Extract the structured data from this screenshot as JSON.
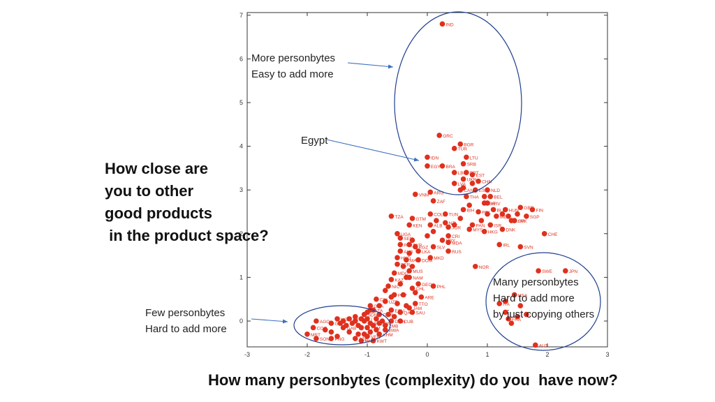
{
  "annotations": {
    "more_line1": "More personbytes",
    "more_line2": "Easy to add more",
    "egypt": "Egypt",
    "few_line1": "Few personbytes",
    "few_line2": "Hard to add more",
    "many_line1": "Many personbytes",
    "many_line2": "Hard to add more",
    "many_line3": "by just copying others"
  },
  "question": {
    "line1": "How close are",
    "line2": "you to other",
    "line3": "good products",
    "line4": " in the product space?"
  },
  "xaxis_title": "How many personbytes (complexity) do you  have now?",
  "colors": {
    "points": "#e0301e",
    "ellipses": "#1f3f8f",
    "arrows": "#3a6fc0"
  },
  "chart_data": {
    "type": "scatter",
    "xlim": [
      -3,
      3
    ],
    "ylim": [
      -0.6,
      7
    ],
    "xticks": [
      "-3",
      "-2",
      "-1",
      "0",
      "1",
      "2",
      "3"
    ],
    "yticks": [
      "0",
      "1",
      "2",
      "3",
      "4",
      "5",
      "6",
      "7"
    ],
    "labeled_points": [
      {
        "label": "IND",
        "x": 0.25,
        "y": 6.8
      },
      {
        "label": "GRC",
        "x": 0.2,
        "y": 4.25
      },
      {
        "label": "BGR",
        "x": 0.55,
        "y": 4.05
      },
      {
        "label": "TUR",
        "x": 0.45,
        "y": 3.95
      },
      {
        "label": "LTU",
        "x": 0.65,
        "y": 3.75
      },
      {
        "label": "IDN",
        "x": 0.0,
        "y": 3.75
      },
      {
        "label": "SRB",
        "x": 0.6,
        "y": 3.6
      },
      {
        "label": "EGY",
        "x": 0.0,
        "y": 3.55
      },
      {
        "label": "BRA",
        "x": 0.25,
        "y": 3.55
      },
      {
        "label": "LBN",
        "x": 0.45,
        "y": 3.4
      },
      {
        "label": "PRT",
        "x": 0.65,
        "y": 3.4
      },
      {
        "label": "EST",
        "x": 0.75,
        "y": 3.35
      },
      {
        "label": "UKR",
        "x": 0.6,
        "y": 3.25
      },
      {
        "label": "CHN",
        "x": 0.85,
        "y": 3.2
      },
      {
        "label": "LVA",
        "x": 0.45,
        "y": 3.15
      },
      {
        "label": "VNM",
        "x": -0.2,
        "y": 2.9
      },
      {
        "label": "ARG",
        "x": 0.05,
        "y": 2.95
      },
      {
        "label": "CAN",
        "x": 0.55,
        "y": 3.0
      },
      {
        "label": "ESP",
        "x": 0.8,
        "y": 3.0
      },
      {
        "label": "NLD",
        "x": 1.0,
        "y": 3.0
      },
      {
        "label": "BEL",
        "x": 1.05,
        "y": 2.85
      },
      {
        "label": "THA",
        "x": 0.65,
        "y": 2.85
      },
      {
        "label": "ZAF",
        "x": 0.1,
        "y": 2.75
      },
      {
        "label": "ISR",
        "x": 0.95,
        "y": 2.7
      },
      {
        "label": "HRV",
        "x": 1.0,
        "y": 2.7
      },
      {
        "label": "BIH",
        "x": 0.6,
        "y": 2.55
      },
      {
        "label": "POL",
        "x": 0.85,
        "y": 2.5
      },
      {
        "label": "BLR",
        "x": 1.1,
        "y": 2.55
      },
      {
        "label": "HUN",
        "x": 1.3,
        "y": 2.55
      },
      {
        "label": "GBR",
        "x": 1.55,
        "y": 2.6
      },
      {
        "label": "FIN",
        "x": 1.75,
        "y": 2.55
      },
      {
        "label": "SGP",
        "x": 1.65,
        "y": 2.4
      },
      {
        "label": "MEX",
        "x": 1.15,
        "y": 2.4
      },
      {
        "label": "SVK",
        "x": 1.45,
        "y": 2.3
      },
      {
        "label": "KOR",
        "x": 1.4,
        "y": 2.3
      },
      {
        "label": "TZA",
        "x": -0.6,
        "y": 2.4
      },
      {
        "label": "COL",
        "x": 0.05,
        "y": 2.45
      },
      {
        "label": "TUN",
        "x": 0.3,
        "y": 2.45
      },
      {
        "label": "GTM",
        "x": -0.25,
        "y": 2.35
      },
      {
        "label": "PAN",
        "x": 0.75,
        "y": 2.2
      },
      {
        "label": "ISR",
        "x": 1.05,
        "y": 2.2
      },
      {
        "label": "NZL",
        "x": 0.3,
        "y": 2.25
      },
      {
        "label": "KEN",
        "x": -0.3,
        "y": 2.2
      },
      {
        "label": "ALB",
        "x": 0.05,
        "y": 2.2
      },
      {
        "label": "JOR",
        "x": 0.35,
        "y": 2.15
      },
      {
        "label": "MYS",
        "x": 0.7,
        "y": 2.1
      },
      {
        "label": "HKG",
        "x": 0.95,
        "y": 2.05
      },
      {
        "label": "DNK",
        "x": 1.25,
        "y": 2.1
      },
      {
        "label": "CHE",
        "x": 1.95,
        "y": 2.0
      },
      {
        "label": "UGA",
        "x": -0.5,
        "y": 2.0
      },
      {
        "label": "SEN",
        "x": -0.45,
        "y": 1.9
      },
      {
        "label": "CRI",
        "x": 0.35,
        "y": 1.95
      },
      {
        "label": "URY",
        "x": 0.25,
        "y": 1.85
      },
      {
        "label": "PAK",
        "x": -0.45,
        "y": 1.75
      },
      {
        "label": "SYR",
        "x": -0.3,
        "y": 1.75
      },
      {
        "label": "MDA",
        "x": 0.35,
        "y": 1.8
      },
      {
        "label": "KGZ",
        "x": -0.2,
        "y": 1.7
      },
      {
        "label": "SLV",
        "x": 0.1,
        "y": 1.7
      },
      {
        "label": "IRL",
        "x": 1.2,
        "y": 1.75
      },
      {
        "label": "SVN",
        "x": 1.55,
        "y": 1.7
      },
      {
        "label": "AUS",
        "x": -0.45,
        "y": 1.6
      },
      {
        "label": "LKA",
        "x": -0.15,
        "y": 1.6
      },
      {
        "label": "RUS",
        "x": 0.35,
        "y": 1.6
      },
      {
        "label": "HND",
        "x": -0.5,
        "y": 1.45
      },
      {
        "label": "MKD",
        "x": 0.05,
        "y": 1.45
      },
      {
        "label": "MAR",
        "x": -0.35,
        "y": 1.4
      },
      {
        "label": "DOM",
        "x": -0.15,
        "y": 1.4
      },
      {
        "label": "NOR",
        "x": 0.8,
        "y": 1.25
      },
      {
        "label": "PER",
        "x": -0.5,
        "y": 1.3
      },
      {
        "label": "MUS",
        "x": -0.3,
        "y": 1.15
      },
      {
        "label": "MDG",
        "x": -0.55,
        "y": 1.1
      },
      {
        "label": "SWE",
        "x": 1.85,
        "y": 1.15
      },
      {
        "label": "JPN",
        "x": 2.3,
        "y": 1.15
      },
      {
        "label": "NAM",
        "x": -0.3,
        "y": 1.0
      },
      {
        "label": "KAZ",
        "x": -0.6,
        "y": 0.95
      },
      {
        "label": "GEO",
        "x": -0.15,
        "y": 0.85
      },
      {
        "label": "PHL",
        "x": 0.1,
        "y": 0.8
      },
      {
        "label": "NIC",
        "x": -0.65,
        "y": 0.8
      },
      {
        "label": "CHL",
        "x": -0.25,
        "y": 0.75
      },
      {
        "label": "PRY",
        "x": -0.55,
        "y": 0.6
      },
      {
        "label": "ARE",
        "x": -0.1,
        "y": 0.55
      },
      {
        "label": "CIV",
        "x": -0.85,
        "y": 0.5
      },
      {
        "label": "USA",
        "x": 1.45,
        "y": 0.6
      },
      {
        "label": "UZB",
        "x": -0.7,
        "y": 0.45
      },
      {
        "label": "TTO",
        "x": -0.2,
        "y": 0.4
      },
      {
        "label": "GHA",
        "x": -0.95,
        "y": 0.35
      },
      {
        "label": "ITA",
        "x": 1.2,
        "y": 0.4
      },
      {
        "label": "JAM",
        "x": -0.3,
        "y": 0.3
      },
      {
        "label": "SAU",
        "x": -0.25,
        "y": 0.2
      },
      {
        "label": "QAT",
        "x": -0.45,
        "y": 0.2
      },
      {
        "label": "DZA",
        "x": -0.95,
        "y": 0.25
      },
      {
        "label": "ECU",
        "x": -0.6,
        "y": 0.25
      },
      {
        "label": "SDN",
        "x": -1.05,
        "y": 0.15
      },
      {
        "label": "CMR",
        "x": -0.8,
        "y": 0.15
      },
      {
        "label": "CUB",
        "x": -0.45,
        "y": 0.0
      },
      {
        "label": "OMN",
        "x": -0.6,
        "y": 0.0
      },
      {
        "label": "AGO",
        "x": -1.85,
        "y": 0.0
      },
      {
        "label": "NGA",
        "x": -1.5,
        "y": 0.05
      },
      {
        "label": "LBY",
        "x": -1.3,
        "y": 0.05
      },
      {
        "label": "GIN",
        "x": -1.6,
        "y": -0.05
      },
      {
        "label": "MLI",
        "x": -1.1,
        "y": 0.05
      },
      {
        "label": "IRN",
        "x": -0.8,
        "y": -0.05
      },
      {
        "label": "ZMB",
        "x": -0.7,
        "y": -0.1
      },
      {
        "label": "BOL",
        "x": -0.95,
        "y": -0.05
      },
      {
        "label": "COG",
        "x": -1.9,
        "y": -0.15
      },
      {
        "label": "TKM",
        "x": -1.0,
        "y": -0.15
      },
      {
        "label": "GAB",
        "x": -1.4,
        "y": -0.15
      },
      {
        "label": "KHM",
        "x": -0.8,
        "y": -0.3
      },
      {
        "label": "BWA",
        "x": -0.7,
        "y": -0.2
      },
      {
        "label": "FRA",
        "x": 1.35,
        "y": 0.05
      },
      {
        "label": "MRT",
        "x": -2.0,
        "y": -0.3
      },
      {
        "label": "PNG",
        "x": -1.6,
        "y": -0.4
      },
      {
        "label": "SON",
        "x": -1.85,
        "y": -0.4
      },
      {
        "label": "AZE",
        "x": -1.2,
        "y": -0.4
      },
      {
        "label": "MNG",
        "x": -1.1,
        "y": -0.45
      },
      {
        "label": "VEN",
        "x": -1.0,
        "y": -0.35
      },
      {
        "label": "KWT",
        "x": -0.9,
        "y": -0.45
      },
      {
        "label": "AUT",
        "x": 1.8,
        "y": -0.55
      }
    ],
    "unlabeled_points": [
      [
        -1.45,
        -0.05
      ],
      [
        -1.35,
        -0.1
      ],
      [
        -1.25,
        -0.05
      ],
      [
        -1.2,
        0.0
      ],
      [
        -1.15,
        -0.1
      ],
      [
        -1.1,
        -0.15
      ],
      [
        -1.05,
        0.0
      ],
      [
        -1.0,
        0.05
      ],
      [
        -0.95,
        -0.25
      ],
      [
        -0.9,
        -0.1
      ],
      [
        -0.85,
        0.05
      ],
      [
        -0.75,
        0.0
      ],
      [
        -1.3,
        -0.25
      ],
      [
        -1.15,
        -0.3
      ],
      [
        -1.05,
        -0.3
      ],
      [
        -0.85,
        -0.2
      ],
      [
        -1.0,
        0.2
      ],
      [
        -0.9,
        0.25
      ],
      [
        -0.65,
        0.15
      ],
      [
        -0.55,
        0.1
      ],
      [
        -1.2,
        0.1
      ],
      [
        -1.4,
        0.0
      ],
      [
        -0.8,
        0.35
      ],
      [
        -0.5,
        0.4
      ],
      [
        -0.35,
        0.35
      ],
      [
        -0.6,
        0.55
      ],
      [
        -0.4,
        0.6
      ],
      [
        -0.7,
        0.7
      ],
      [
        -0.2,
        0.65
      ],
      [
        -0.45,
        0.85
      ],
      [
        -0.35,
        1.0
      ],
      [
        -0.4,
        1.25
      ],
      [
        -0.25,
        1.25
      ],
      [
        -0.3,
        1.55
      ],
      [
        -0.25,
        1.85
      ],
      [
        0.0,
        1.95
      ],
      [
        0.1,
        2.05
      ],
      [
        0.15,
        2.3
      ],
      [
        0.45,
        2.2
      ],
      [
        0.55,
        2.35
      ],
      [
        0.9,
        2.3
      ],
      [
        1.0,
        2.45
      ],
      [
        1.25,
        2.45
      ],
      [
        1.35,
        2.4
      ],
      [
        1.5,
        2.45
      ],
      [
        0.95,
        2.85
      ],
      [
        0.75,
        3.15
      ],
      [
        0.6,
        3.05
      ],
      [
        0.7,
        2.65
      ],
      [
        1.3,
        0.45
      ],
      [
        1.5,
        0.1
      ],
      [
        1.55,
        0.35
      ],
      [
        1.65,
        0.15
      ],
      [
        1.3,
        0.2
      ],
      [
        1.4,
        -0.05
      ],
      [
        -1.7,
        -0.2
      ],
      [
        -1.6,
        -0.25
      ],
      [
        -1.5,
        -0.35
      ]
    ]
  }
}
